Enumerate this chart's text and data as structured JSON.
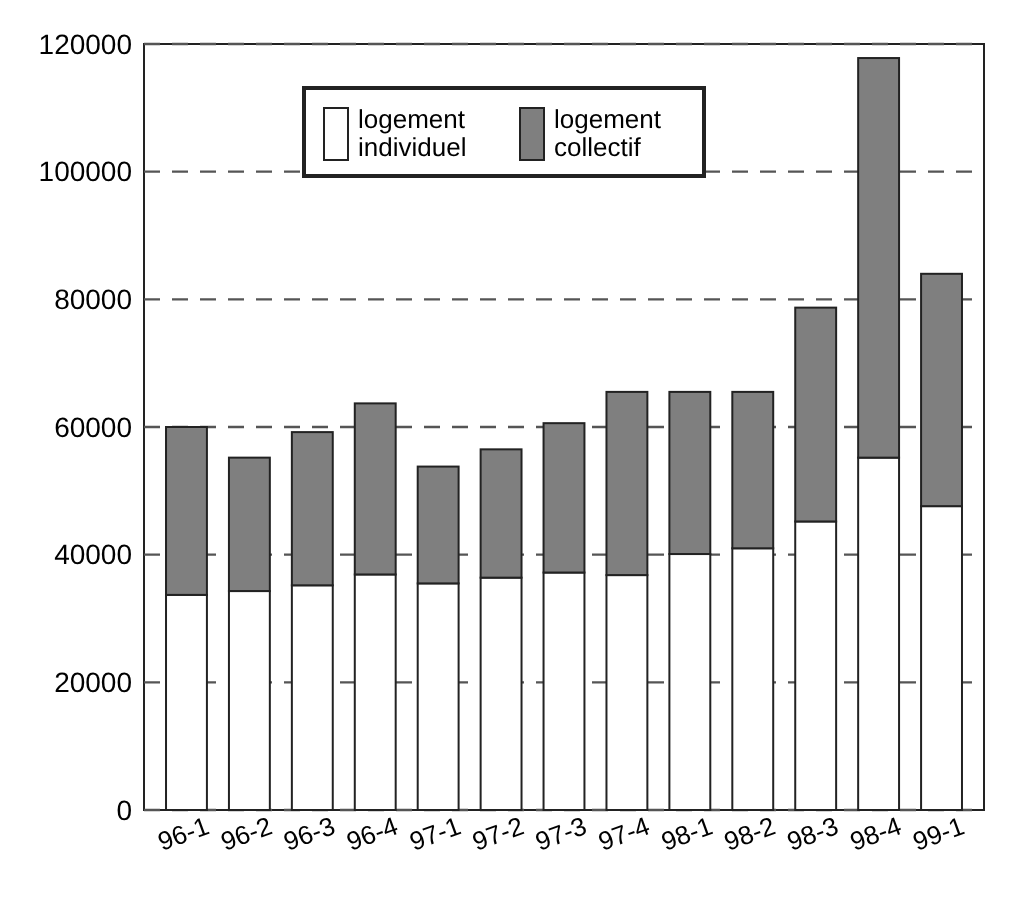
{
  "chart_data": {
    "type": "bar",
    "stacked": true,
    "categories": [
      "96-1",
      "96-2",
      "96-3",
      "96-4",
      "97-1",
      "97-2",
      "97-3",
      "97-4",
      "98-1",
      "98-2",
      "98-3",
      "98-4",
      "99-1"
    ],
    "series": [
      {
        "name": "logement individuel",
        "color": "#ffffff",
        "values": [
          33700,
          34300,
          35200,
          36900,
          35500,
          36400,
          37200,
          36800,
          40100,
          41000,
          45200,
          55200,
          47600
        ]
      },
      {
        "name": "logement collectif",
        "color": "#7f7f7f",
        "values": [
          26300,
          20900,
          24000,
          26800,
          18300,
          20100,
          23400,
          28700,
          25400,
          24500,
          33500,
          62600,
          36400
        ]
      }
    ],
    "ylim": [
      0,
      120000
    ],
    "yticks": [
      0,
      20000,
      40000,
      60000,
      80000,
      100000,
      120000
    ],
    "grid": "y",
    "legend": "top"
  }
}
